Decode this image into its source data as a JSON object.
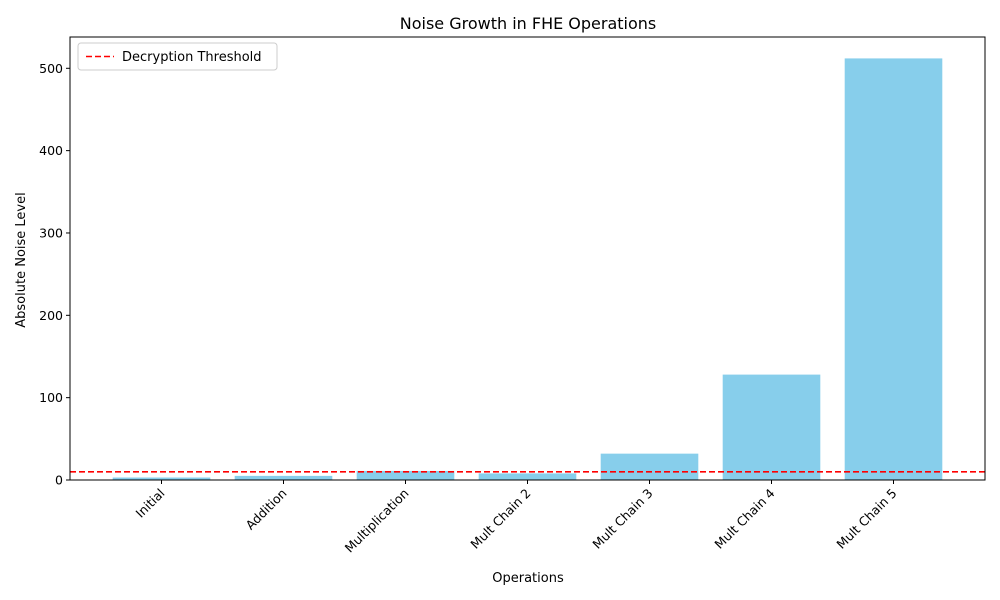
{
  "chart_data": {
    "type": "bar",
    "title": "Noise Growth in FHE Operations",
    "xlabel": "Operations",
    "ylabel": "Absolute Noise Level",
    "categories": [
      "Initial",
      "Addition",
      "Multiplication",
      "Mult Chain 2",
      "Mult Chain 3",
      "Mult Chain 4",
      "Mult Chain 5"
    ],
    "values": [
      3,
      5,
      11,
      8,
      32,
      128,
      512
    ],
    "bar_color": "#87ceeb",
    "ylim": [
      0,
      538
    ],
    "yticks": [
      0,
      100,
      200,
      300,
      400,
      500
    ],
    "threshold": {
      "label": "Decryption Threshold",
      "value": 10,
      "color": "#ff0000",
      "style": "dashed"
    },
    "legend_position": "top-left",
    "grid": false,
    "xtick_rotation": 45
  }
}
